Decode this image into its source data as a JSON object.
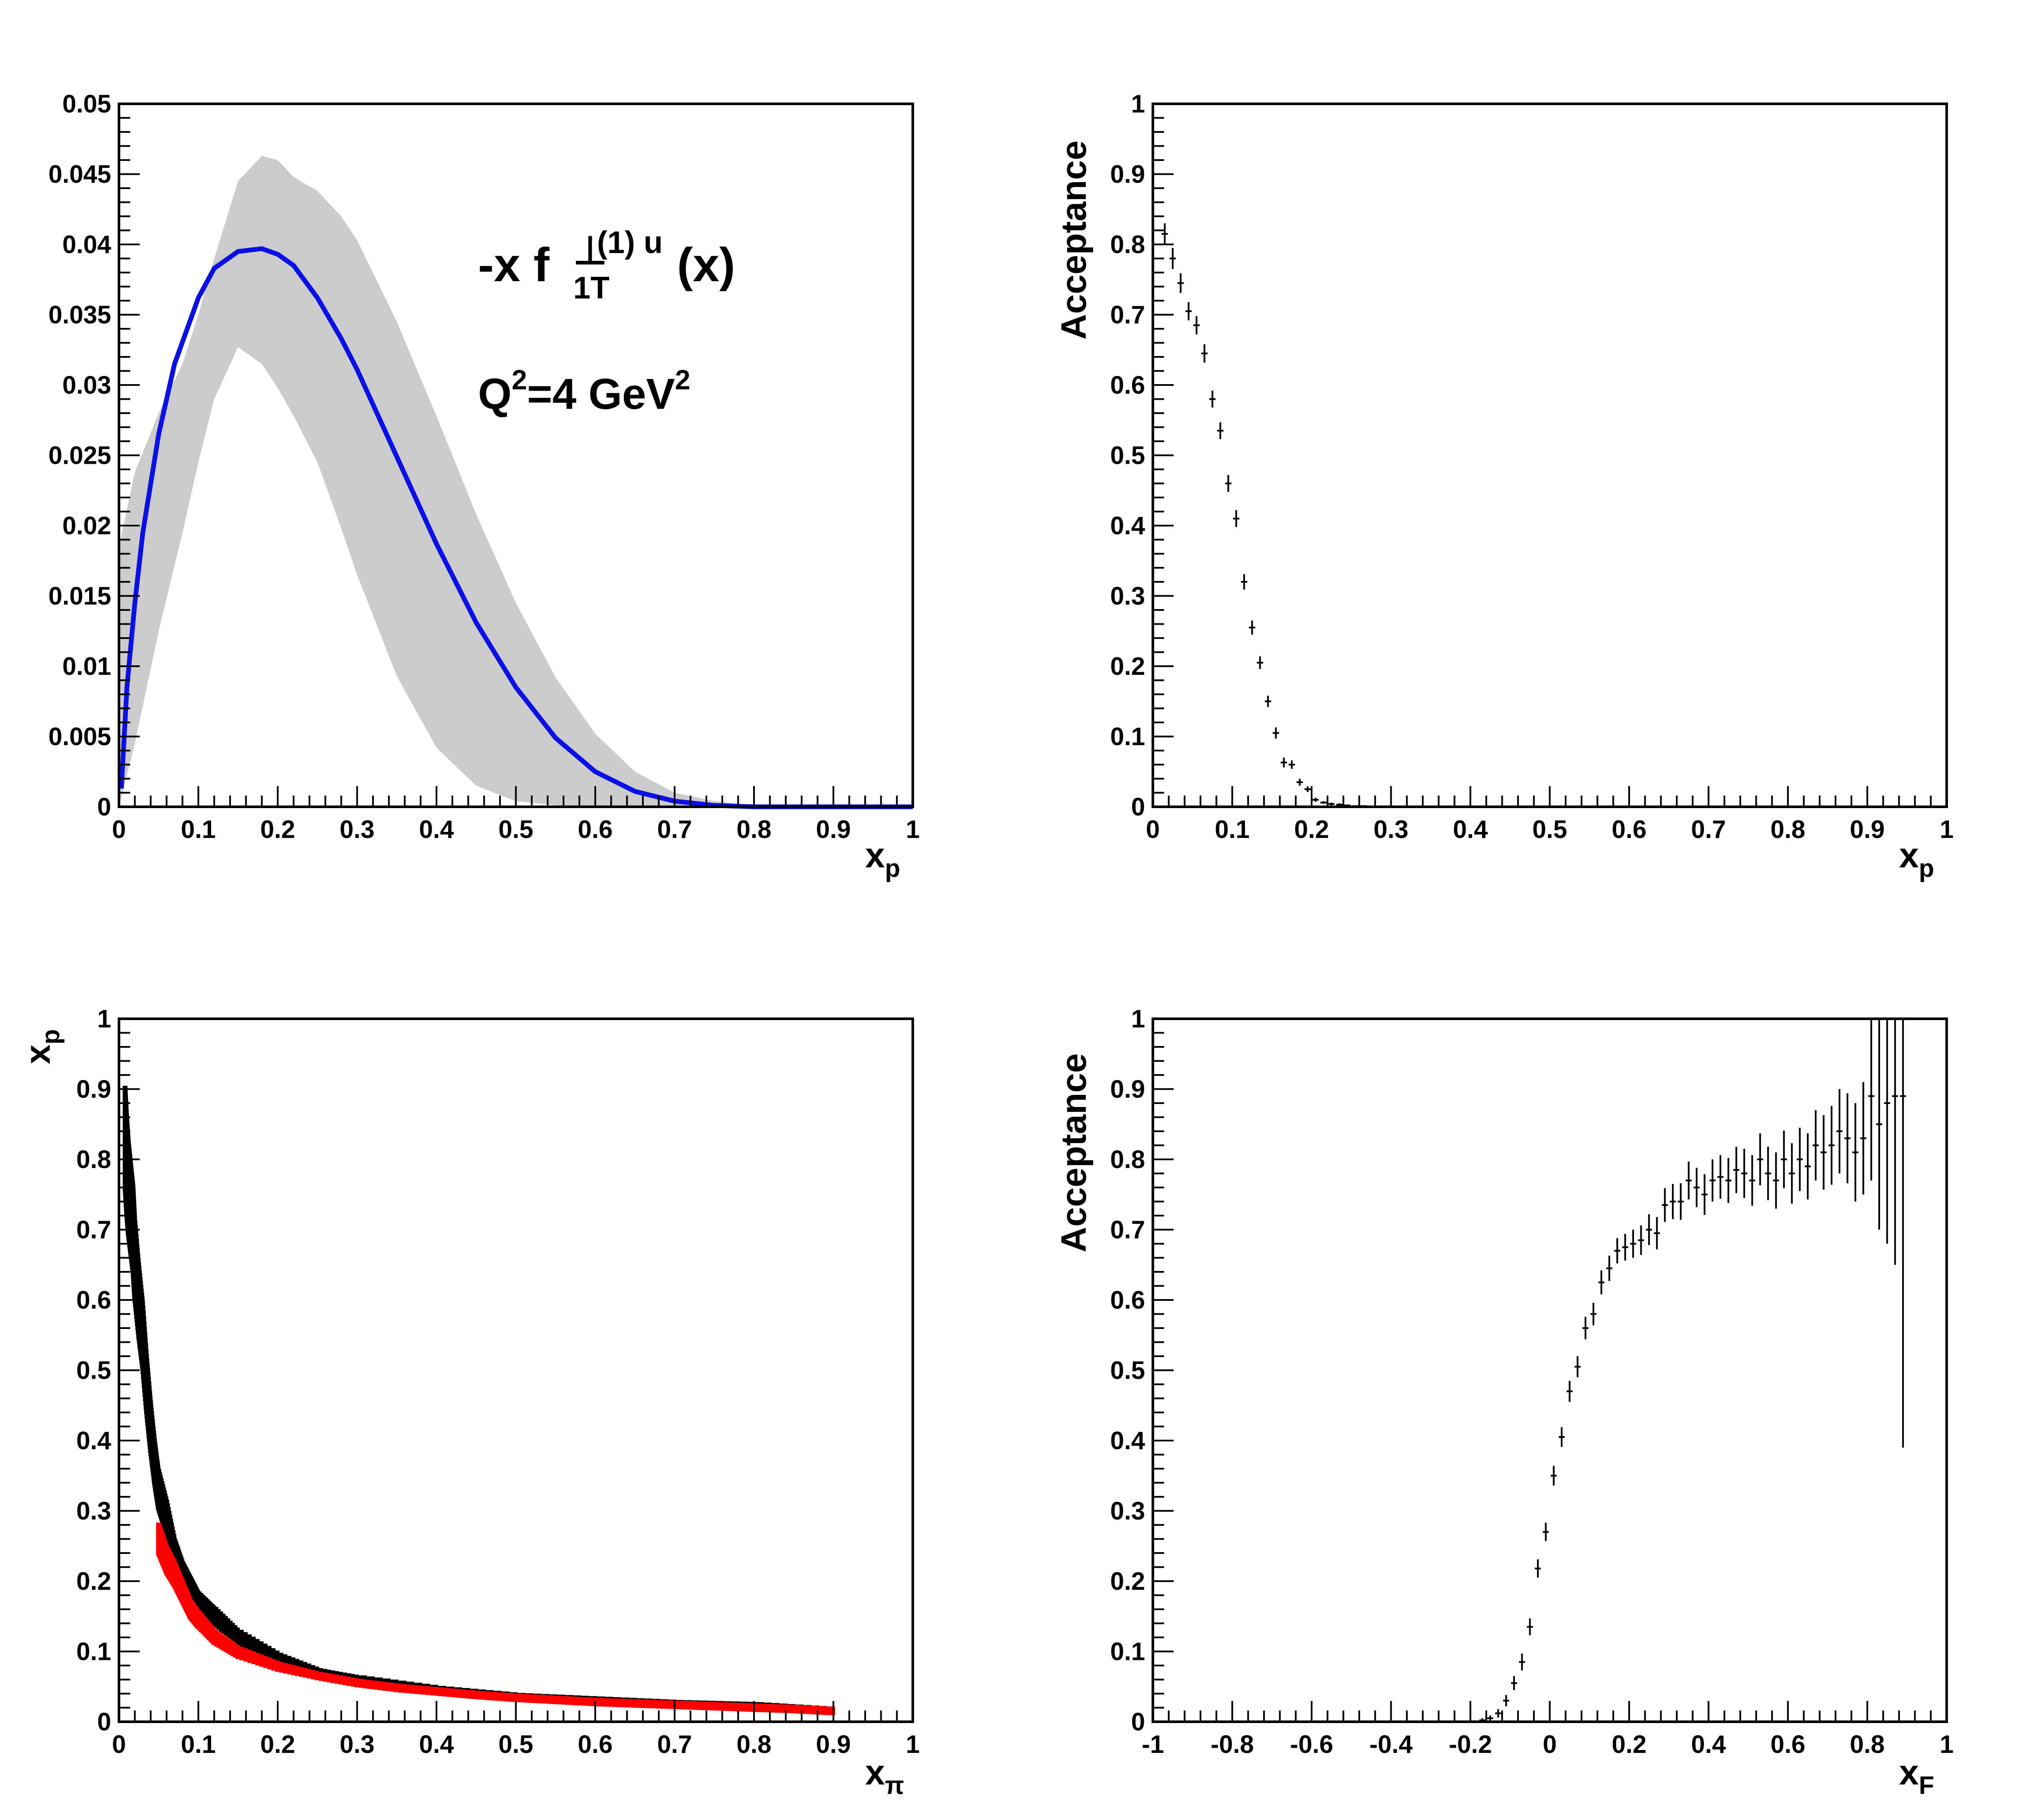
{
  "chart_data": [
    {
      "type": "line",
      "panel": "top-left",
      "xlabel": "x",
      "xlabel_sub": "p",
      "ylabel": "",
      "xlim": [
        0,
        1
      ],
      "ylim": [
        0,
        0.05
      ],
      "xticks": [
        "0",
        "0.1",
        "0.2",
        "0.3",
        "0.4",
        "0.5",
        "0.6",
        "0.7",
        "0.8",
        "0.9",
        "1"
      ],
      "yticks": [
        "0",
        "0.005",
        "0.01",
        "0.015",
        "0.02",
        "0.025",
        "0.03",
        "0.035",
        "0.04",
        "0.045",
        "0.05"
      ],
      "annotation": {
        "prefix": "-x f",
        "sup_mark": "⊥",
        "sub": "1T",
        "sup": "(1) u",
        "suffix": "(x)",
        "q2_base": "Q",
        "q2_exp": "2",
        "q2_mid": "=4 GeV",
        "q2_exp2": "2"
      },
      "colors": {
        "curve": "#0a10e6",
        "band": "#cccccc"
      },
      "series": [
        {
          "x": [
            0.003,
            0.01,
            0.02,
            0.03,
            0.05,
            0.07,
            0.1,
            0.12,
            0.15,
            0.18,
            0.2,
            0.22,
            0.25,
            0.28,
            0.3,
            0.35,
            0.4,
            0.45,
            0.5,
            0.55,
            0.6,
            0.65,
            0.7,
            0.75,
            0.8,
            0.85,
            0.9,
            1.0
          ],
          "y": [
            0.0013,
            0.0085,
            0.0145,
            0.0195,
            0.0265,
            0.0315,
            0.0362,
            0.0383,
            0.0395,
            0.0397,
            0.0393,
            0.0385,
            0.0362,
            0.0333,
            0.0311,
            0.0249,
            0.0187,
            0.0131,
            0.0085,
            0.0049,
            0.0025,
            0.0011,
            0.0004,
            0.0001,
            0.0,
            0.0,
            0.0,
            0.0
          ]
        }
      ],
      "band": {
        "x": [
          0.0,
          0.02,
          0.05,
          0.08,
          0.1,
          0.12,
          0.15,
          0.18,
          0.2,
          0.22,
          0.25,
          0.28,
          0.3,
          0.35,
          0.4,
          0.45,
          0.5,
          0.55,
          0.6,
          0.65,
          0.7,
          0.75,
          0.8,
          0.85,
          1.0
        ],
        "upper": [
          0.0185,
          0.0238,
          0.028,
          0.0315,
          0.035,
          0.039,
          0.0445,
          0.0463,
          0.046,
          0.0448,
          0.0438,
          0.042,
          0.0403,
          0.0345,
          0.0278,
          0.0208,
          0.0145,
          0.0092,
          0.0052,
          0.0025,
          0.001,
          0.0004,
          0.0001,
          0.0,
          0.0
        ],
        "lower": [
          0.0,
          0.0045,
          0.0125,
          0.0195,
          0.0245,
          0.029,
          0.0327,
          0.0315,
          0.0298,
          0.0278,
          0.0245,
          0.0198,
          0.0165,
          0.0093,
          0.0042,
          0.0015,
          0.0004,
          0.0001,
          0.0,
          0.0,
          0.0,
          0.0,
          0.0,
          0.0,
          0.0
        ]
      }
    },
    {
      "type": "scatter",
      "panel": "top-right",
      "xlabel": "x",
      "xlabel_sub": "p",
      "ylabel": "Acceptance",
      "xlim": [
        0,
        1
      ],
      "ylim": [
        0,
        1
      ],
      "xticks": [
        "0",
        "0.1",
        "0.2",
        "0.3",
        "0.4",
        "0.5",
        "0.6",
        "0.7",
        "0.8",
        "0.9",
        "1"
      ],
      "yticks": [
        "0",
        "0.1",
        "0.2",
        "0.3",
        "0.4",
        "0.5",
        "0.6",
        "0.7",
        "0.8",
        "0.9",
        "1"
      ],
      "series": [
        {
          "x": [
            0.015,
            0.025,
            0.035,
            0.045,
            0.055,
            0.065,
            0.075,
            0.085,
            0.095,
            0.105,
            0.115,
            0.125,
            0.135,
            0.145,
            0.155,
            0.165,
            0.175,
            0.185,
            0.195,
            0.205,
            0.215,
            0.225,
            0.235,
            0.245,
            0.255,
            0.265,
            0.275
          ],
          "y": [
            0.815,
            0.78,
            0.745,
            0.705,
            0.685,
            0.645,
            0.58,
            0.535,
            0.46,
            0.41,
            0.32,
            0.255,
            0.205,
            0.15,
            0.105,
            0.063,
            0.06,
            0.035,
            0.025,
            0.01,
            0.006,
            0.004,
            0.003,
            0.002,
            0.001,
            0.001,
            0.0
          ],
          "err": [
            0.015,
            0.015,
            0.014,
            0.013,
            0.013,
            0.013,
            0.012,
            0.012,
            0.012,
            0.012,
            0.011,
            0.01,
            0.009,
            0.008,
            0.008,
            0.007,
            0.006,
            0.005,
            0.004,
            0.003,
            0.002,
            0.002,
            0.002,
            0.001,
            0.001,
            0.001,
            0.001
          ]
        }
      ]
    },
    {
      "type": "scatter",
      "panel": "bottom-left",
      "xlabel": "x",
      "xlabel_sub": "π",
      "ylabel": "x",
      "ylabel_sub": "p",
      "xlim": [
        0,
        1
      ],
      "ylim": [
        0,
        1
      ],
      "xticks": [
        "0",
        "0.1",
        "0.2",
        "0.3",
        "0.4",
        "0.5",
        "0.6",
        "0.7",
        "0.8",
        "0.9",
        "1"
      ],
      "yticks": [
        "0",
        "0.1",
        "0.2",
        "0.3",
        "0.4",
        "0.5",
        "0.6",
        "0.7",
        "0.8",
        "0.9",
        "1"
      ],
      "colors": {
        "all": "#000000",
        "accepted": "#ff0000"
      },
      "series": [
        {
          "x": [
            0.008,
            0.01,
            0.012,
            0.015,
            0.018,
            0.02,
            0.025,
            0.03,
            0.035,
            0.04,
            0.045,
            0.05,
            0.06,
            0.07,
            0.08,
            0.09,
            0.1,
            0.12,
            0.15,
            0.2,
            0.25,
            0.3,
            0.4,
            0.5,
            0.6,
            0.7,
            0.8,
            0.9
          ],
          "y": [
            0.83,
            0.79,
            0.76,
            0.73,
            0.7,
            0.66,
            0.6,
            0.55,
            0.48,
            0.42,
            0.37,
            0.33,
            0.29,
            0.24,
            0.21,
            0.19,
            0.17,
            0.15,
            0.12,
            0.09,
            0.07,
            0.06,
            0.045,
            0.035,
            0.03,
            0.025,
            0.022,
            0.015
          ]
        },
        {
          "x": [
            0.05,
            0.06,
            0.07,
            0.08,
            0.09,
            0.1,
            0.12,
            0.15,
            0.2,
            0.25,
            0.3,
            0.35,
            0.4,
            0.45,
            0.5,
            0.55,
            0.6,
            0.65,
            0.7,
            0.75,
            0.8,
            0.85,
            0.9
          ],
          "y": [
            0.26,
            0.23,
            0.21,
            0.185,
            0.16,
            0.145,
            0.12,
            0.098,
            0.078,
            0.065,
            0.055,
            0.048,
            0.043,
            0.038,
            0.034,
            0.031,
            0.028,
            0.026,
            0.024,
            0.022,
            0.02,
            0.018,
            0.015
          ]
        }
      ]
    },
    {
      "type": "scatter",
      "panel": "bottom-right",
      "xlabel": "x",
      "xlabel_sub": "F",
      "ylabel": "Acceptance",
      "xlim": [
        -1,
        1
      ],
      "ylim": [
        0,
        1
      ],
      "xticks": [
        "-1",
        "-0.8",
        "-0.6",
        "-0.4",
        "-0.2",
        "0",
        "0.2",
        "0.4",
        "0.6",
        "0.8",
        "1"
      ],
      "yticks": [
        "0",
        "0.1",
        "0.2",
        "0.3",
        "0.4",
        "0.5",
        "0.6",
        "0.7",
        "0.8",
        "0.9",
        "1"
      ],
      "series": [
        {
          "x": [
            -0.19,
            -0.17,
            -0.15,
            -0.13,
            -0.11,
            -0.09,
            -0.07,
            -0.05,
            -0.03,
            -0.01,
            0.01,
            0.03,
            0.05,
            0.07,
            0.09,
            0.11,
            0.13,
            0.15,
            0.17,
            0.19,
            0.21,
            0.23,
            0.25,
            0.27,
            0.29,
            0.31,
            0.33,
            0.35,
            0.37,
            0.39,
            0.41,
            0.43,
            0.45,
            0.47,
            0.49,
            0.51,
            0.53,
            0.55,
            0.57,
            0.59,
            0.61,
            0.63,
            0.65,
            0.67,
            0.69,
            0.71,
            0.73,
            0.75,
            0.77,
            0.79,
            0.81,
            0.83,
            0.85,
            0.87,
            0.89
          ],
          "y": [
            0.0,
            0.002,
            0.005,
            0.012,
            0.03,
            0.055,
            0.085,
            0.135,
            0.218,
            0.27,
            0.35,
            0.405,
            0.47,
            0.505,
            0.56,
            0.58,
            0.625,
            0.645,
            0.67,
            0.675,
            0.68,
            0.685,
            0.7,
            0.695,
            0.735,
            0.74,
            0.74,
            0.77,
            0.76,
            0.75,
            0.77,
            0.775,
            0.77,
            0.785,
            0.78,
            0.77,
            0.8,
            0.78,
            0.77,
            0.8,
            0.78,
            0.8,
            0.79,
            0.82,
            0.81,
            0.82,
            0.84,
            0.83,
            0.81,
            0.83,
            0.89,
            0.85,
            0.88,
            0.89,
            0.89
          ],
          "err": [
            0.002,
            0.003,
            0.004,
            0.006,
            0.008,
            0.01,
            0.012,
            0.012,
            0.013,
            0.013,
            0.014,
            0.014,
            0.015,
            0.015,
            0.016,
            0.016,
            0.017,
            0.018,
            0.018,
            0.019,
            0.02,
            0.021,
            0.022,
            0.023,
            0.024,
            0.025,
            0.026,
            0.027,
            0.028,
            0.029,
            0.03,
            0.031,
            0.032,
            0.033,
            0.035,
            0.036,
            0.037,
            0.038,
            0.04,
            0.041,
            0.043,
            0.045,
            0.047,
            0.05,
            0.053,
            0.056,
            0.06,
            0.064,
            0.07,
            0.08,
            0.12,
            0.15,
            0.2,
            0.24,
            0.5
          ]
        }
      ]
    }
  ]
}
